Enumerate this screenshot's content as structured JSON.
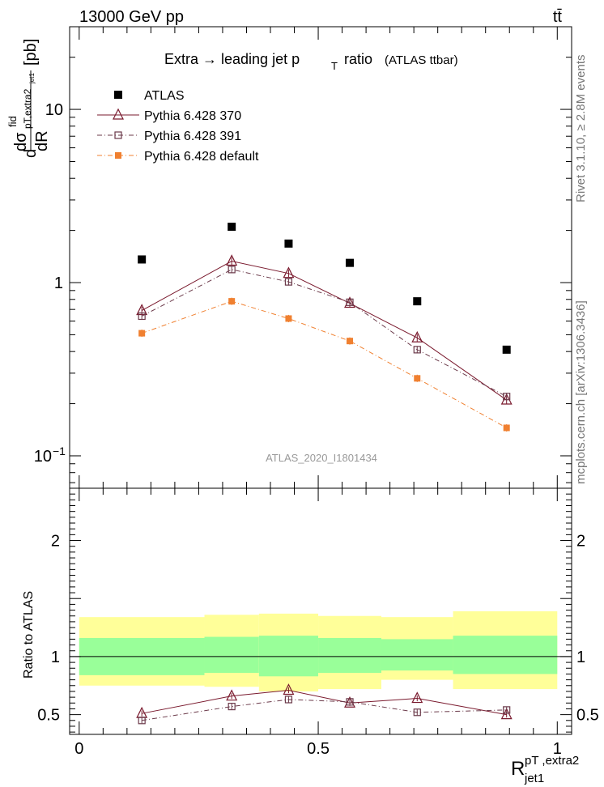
{
  "header": {
    "beam_label": "13000 GeV pp",
    "process_label": "tt̄"
  },
  "side": {
    "rivet_label": "Rivet 3.1.10, ≥ 2.8M events",
    "mcplots_label": "mcplots.cern.ch [arXiv:1306.3436]"
  },
  "watermark": "ATLAS_2020_I1801434",
  "colors": {
    "atlas": "#000000",
    "p370": "#7a1a2e",
    "p391": "#6b3a4a",
    "pdefault": "#f08030",
    "band_inner": "#99ff99",
    "band_outer": "#ffff99"
  },
  "chart_data": [
    {
      "type": "scatter",
      "title": "Extra → leading jet p_T ratio (ATLAS ttbar)",
      "title_parts": {
        "main": "Extra → leading jet p",
        "sub": "T",
        "tail": "ratio",
        "small": "(ATLAS ttbar)"
      },
      "ylabel_parts": {
        "d": "d",
        "sigma": "dσ",
        "fid": "fid",
        "pt": "pT,extra2",
        "jet": "jet1",
        "dR": "dR",
        "unit": "[pb]"
      },
      "yscale": "log",
      "ylim": [
        0.065,
        30
      ],
      "xlim": [
        -0.02,
        1.03
      ],
      "yticks": [
        {
          "v": 10,
          "label": "10"
        },
        {
          "v": 1,
          "label": "1"
        },
        {
          "v": 0.1,
          "label": "10",
          "sup": "−1"
        }
      ],
      "x": [
        0.131,
        0.319,
        0.438,
        0.566,
        0.707,
        0.894
      ],
      "series": [
        {
          "name": "ATLAS",
          "style": "data",
          "values": [
            1.36,
            2.1,
            1.68,
            1.3,
            0.78,
            0.41
          ]
        },
        {
          "name": "Pythia 6.428 370",
          "style": "triangle",
          "values": [
            0.69,
            1.33,
            1.13,
            0.76,
            0.48,
            0.21
          ]
        },
        {
          "name": "Pythia 6.428 391",
          "style": "open-square",
          "values": [
            0.64,
            1.19,
            1.01,
            0.77,
            0.41,
            0.22
          ]
        },
        {
          "name": "Pythia 6.428 default",
          "style": "filled-square",
          "values": [
            0.51,
            0.78,
            0.62,
            0.46,
            0.28,
            0.145
          ]
        }
      ]
    },
    {
      "type": "line",
      "ylabel": "Ratio to ATLAS",
      "ylim": [
        0.33,
        2.45
      ],
      "xlim": [
        -0.02,
        1.03
      ],
      "yticks": [
        {
          "v": 2,
          "label": "2"
        },
        {
          "v": 1,
          "label": "1"
        },
        {
          "v": 0.5,
          "label": "0.5"
        }
      ],
      "xticks": [
        {
          "v": 0,
          "label": "0"
        },
        {
          "v": 0.5,
          "label": "0.5"
        },
        {
          "v": 1,
          "label": "1"
        }
      ],
      "xlabel_parts": {
        "R": "R",
        "sup": "pT ,extra2",
        "sub": "jet1"
      },
      "bins": [
        0.0,
        0.262,
        0.376,
        0.5,
        0.632,
        0.782,
        1.0
      ],
      "band_inner": [
        [
          0.84,
          1.16
        ],
        [
          0.86,
          1.17
        ],
        [
          0.83,
          1.18
        ],
        [
          0.86,
          1.16
        ],
        [
          0.88,
          1.15
        ],
        [
          0.85,
          1.18
        ]
      ],
      "band_outer": [
        [
          0.75,
          1.34
        ],
        [
          0.74,
          1.36
        ],
        [
          0.7,
          1.37
        ],
        [
          0.72,
          1.35
        ],
        [
          0.8,
          1.34
        ],
        [
          0.72,
          1.39
        ]
      ],
      "x": [
        0.131,
        0.319,
        0.438,
        0.566,
        0.707,
        0.894
      ],
      "series": [
        {
          "name": "Pythia 6.428 370",
          "style": "triangle",
          "values": [
            0.51,
            0.66,
            0.71,
            0.6,
            0.64,
            0.5
          ]
        },
        {
          "name": "Pythia 6.428 391",
          "style": "open-square",
          "values": [
            0.45,
            0.57,
            0.63,
            0.61,
            0.52,
            0.54
          ]
        }
      ]
    }
  ]
}
